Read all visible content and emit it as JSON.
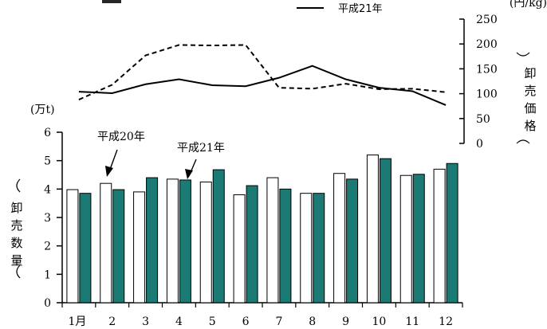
{
  "chart_data": [
    {
      "type": "line",
      "title": "",
      "legend": {
        "entries": [
          "平成21年"
        ],
        "placement": "top"
      },
      "y_unit": "(円/kg)",
      "ylabel": "卸売価格",
      "ylim": [
        0,
        250
      ],
      "y_ticks": [
        "0",
        "50",
        "100",
        "150",
        "200",
        "250"
      ],
      "categories": [
        "1月",
        "2",
        "3",
        "4",
        "5",
        "6",
        "7",
        "8",
        "9",
        "10",
        "11",
        "12"
      ],
      "series": [
        {
          "name": "",
          "style": "dashed",
          "values": [
            88,
            118,
            177,
            198,
            197,
            198,
            112,
            110,
            120,
            109,
            110,
            103
          ]
        },
        {
          "name": "平成21年",
          "style": "solid",
          "values": [
            104,
            101,
            119,
            129,
            117,
            115,
            132,
            156,
            129,
            112,
            105,
            77
          ]
        }
      ]
    },
    {
      "type": "bar",
      "title": "",
      "y_unit": "(万t)",
      "ylabel": "卸売数量",
      "ylim": [
        0,
        6
      ],
      "y_ticks": [
        "0",
        "1",
        "2",
        "3",
        "4",
        "5",
        "6"
      ],
      "categories": [
        "1月",
        "2",
        "3",
        "4",
        "5",
        "6",
        "7",
        "8",
        "9",
        "10",
        "11",
        "12"
      ],
      "series": [
        {
          "name": "平成20年",
          "color": "#ffffff",
          "values": [
            3.98,
            4.2,
            3.9,
            4.35,
            4.25,
            3.8,
            4.4,
            3.85,
            4.55,
            5.2,
            4.48,
            4.7
          ]
        },
        {
          "name": "平成21年",
          "color": "#1b7a74",
          "values": [
            3.85,
            3.98,
            4.4,
            4.32,
            4.68,
            4.12,
            4.0,
            3.85,
            4.35,
            5.07,
            4.52,
            4.9
          ]
        }
      ],
      "annotations": [
        "平成20年",
        "平成21年"
      ]
    }
  ]
}
